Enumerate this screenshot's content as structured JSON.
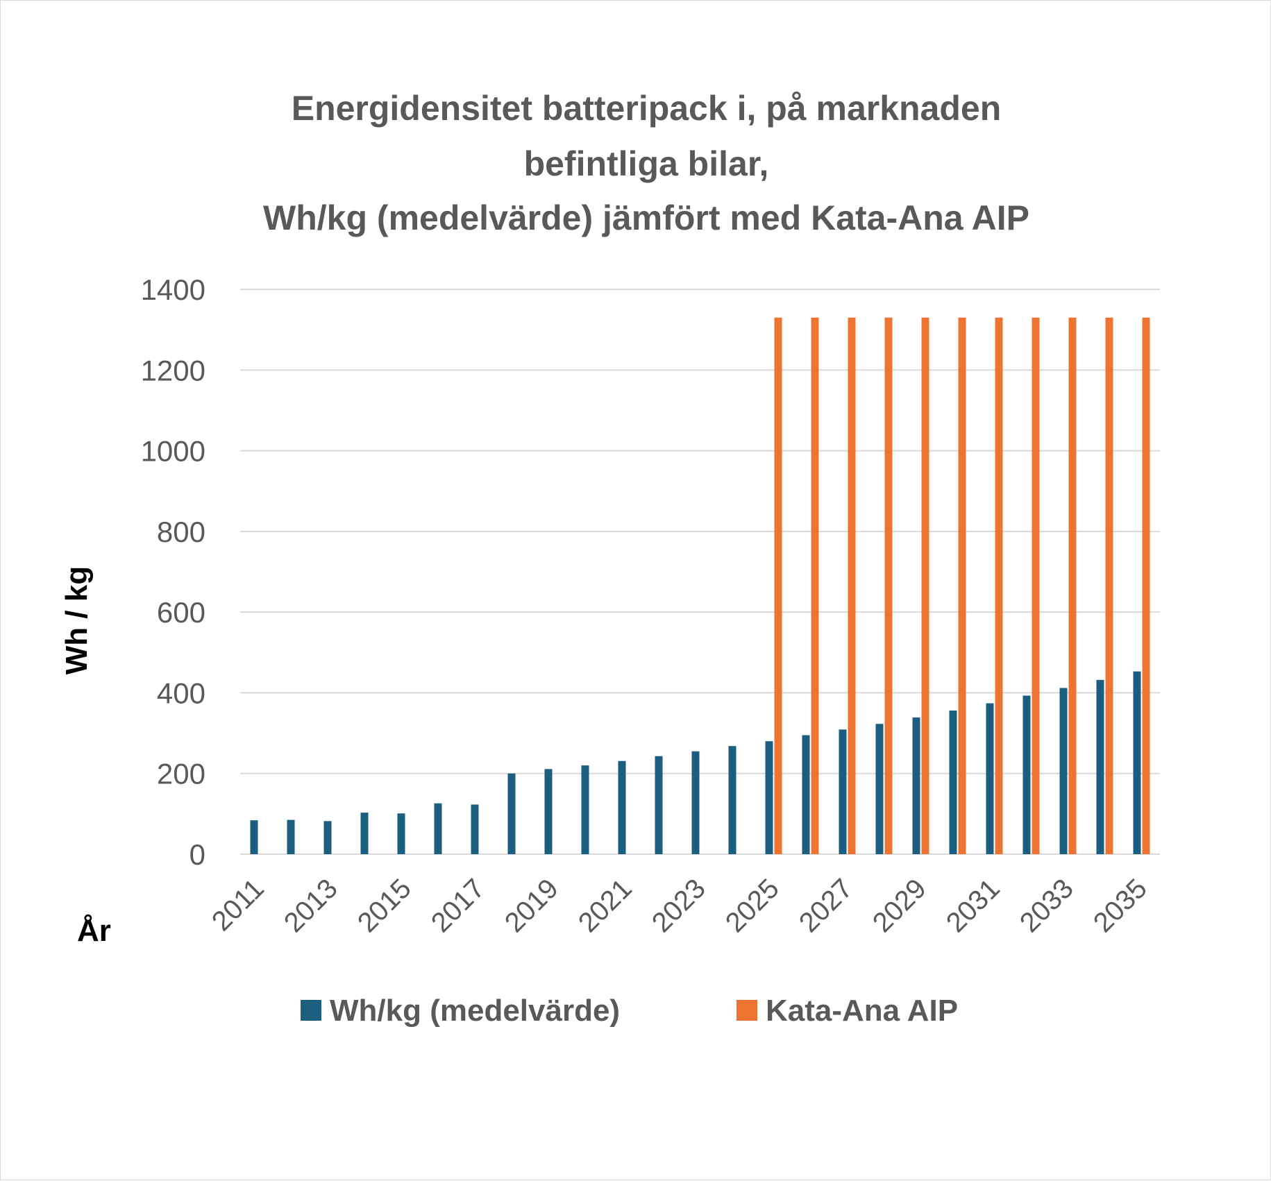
{
  "chart_data": {
    "type": "bar",
    "title_lines": [
      "Energidensitet batteripack i, på marknaden",
      "befintliga bilar,",
      "Wh/kg (medelvärde) jämfört med Kata-Ana AIP"
    ],
    "xlabel": "År",
    "ylabel": "Wh / kg",
    "ylim": [
      0,
      1400
    ],
    "yticks": [
      0,
      200,
      400,
      600,
      800,
      1000,
      1200,
      1400
    ],
    "categories": [
      2011,
      2012,
      2013,
      2014,
      2015,
      2016,
      2017,
      2018,
      2019,
      2020,
      2021,
      2022,
      2023,
      2024,
      2025,
      2026,
      2027,
      2028,
      2029,
      2030,
      2031,
      2032,
      2033,
      2034,
      2035
    ],
    "xtick_labels": [
      "2011",
      "2013",
      "2015",
      "2017",
      "2019",
      "2021",
      "2023",
      "2025",
      "2027",
      "2029",
      "2031",
      "2033",
      "2035"
    ],
    "series": [
      {
        "name": "Wh/kg (medelvärde)",
        "color": "#1b5e7f",
        "values": [
          84,
          85,
          82,
          103,
          101,
          126,
          123,
          200,
          211,
          220,
          231,
          243,
          255,
          268,
          280,
          295,
          309,
          323,
          339,
          356,
          374,
          393,
          412,
          432,
          453
        ]
      },
      {
        "name": "Kata-Ana AIP",
        "color": "#ed7431",
        "values": [
          null,
          null,
          null,
          null,
          null,
          null,
          null,
          null,
          null,
          null,
          null,
          null,
          null,
          null,
          1330,
          1330,
          1330,
          1330,
          1330,
          1330,
          1330,
          1330,
          1330,
          1330,
          1330
        ]
      }
    ],
    "grid": true,
    "legend_position": "bottom"
  }
}
